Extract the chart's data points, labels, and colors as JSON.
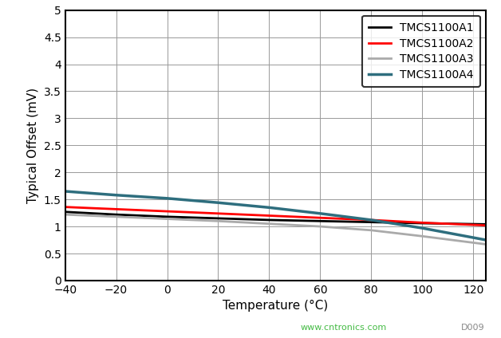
{
  "title": "",
  "xlabel": "Temperature (°C)",
  "ylabel": "Typical Offset (mV)",
  "xlim": [
    -40,
    125
  ],
  "ylim": [
    0,
    5
  ],
  "xticks": [
    -40,
    -20,
    0,
    20,
    40,
    60,
    80,
    100,
    120
  ],
  "yticks": [
    0,
    0.5,
    1,
    1.5,
    2,
    2.5,
    3,
    3.5,
    4,
    4.5,
    5
  ],
  "ytick_labels": [
    "0",
    "0.5",
    "1",
    "1.5",
    "2",
    "2.5",
    "3",
    "3.5",
    "4",
    "4.5",
    "5"
  ],
  "series": [
    {
      "label": "TMCS1100A1",
      "color": "#000000",
      "linewidth": 2.0,
      "x": [
        -40,
        -20,
        0,
        20,
        40,
        60,
        80,
        100,
        125
      ],
      "y": [
        1.27,
        1.22,
        1.18,
        1.15,
        1.12,
        1.1,
        1.08,
        1.06,
        1.04
      ]
    },
    {
      "label": "TMCS1100A2",
      "color": "#ff0000",
      "linewidth": 2.0,
      "x": [
        -40,
        -20,
        0,
        20,
        40,
        60,
        80,
        100,
        125
      ],
      "y": [
        1.36,
        1.32,
        1.28,
        1.24,
        1.2,
        1.16,
        1.12,
        1.07,
        1.02
      ]
    },
    {
      "label": "TMCS1100A3",
      "color": "#aaaaaa",
      "linewidth": 2.0,
      "x": [
        -40,
        -20,
        0,
        20,
        40,
        60,
        80,
        100,
        125
      ],
      "y": [
        1.22,
        1.18,
        1.14,
        1.1,
        1.05,
        1.0,
        0.93,
        0.82,
        0.67
      ]
    },
    {
      "label": "TMCS1100A4",
      "color": "#2e6e7e",
      "linewidth": 2.5,
      "x": [
        -40,
        -20,
        0,
        20,
        40,
        60,
        80,
        100,
        125
      ],
      "y": [
        1.65,
        1.58,
        1.52,
        1.44,
        1.35,
        1.24,
        1.12,
        0.97,
        0.75
      ]
    }
  ],
  "legend_loc": "upper right",
  "grid_color": "#999999",
  "background_color": "#ffffff",
  "watermark": "www.cntronics.com",
  "watermark_color": "#44bb44",
  "fig_label": "D009",
  "fig_label_color": "#888888"
}
